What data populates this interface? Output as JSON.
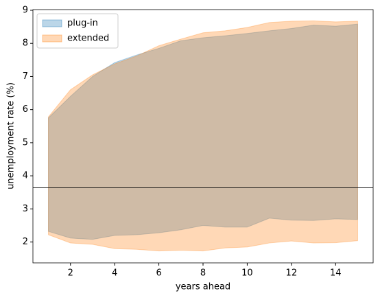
{
  "chart_data": {
    "type": "band",
    "x_label": "years ahead",
    "y_label": "unemployment rate (%)",
    "x": [
      1,
      2,
      3,
      4,
      5,
      6,
      7,
      8,
      9,
      10,
      11,
      12,
      13,
      14,
      15
    ],
    "series": [
      {
        "name": "plug-in",
        "color": "#1f77b4",
        "lower": [
          2.32,
          2.12,
          2.08,
          2.2,
          2.22,
          2.28,
          2.37,
          2.5,
          2.45,
          2.45,
          2.72,
          2.66,
          2.65,
          2.7,
          2.68
        ],
        "values": [
          5.75,
          6.4,
          7.0,
          7.42,
          7.65,
          7.85,
          8.08,
          8.17,
          8.23,
          8.3,
          8.38,
          8.45,
          8.55,
          8.52,
          8.58
        ]
      },
      {
        "name": "extended",
        "color": "#ff7f0e",
        "lower": [
          2.22,
          1.97,
          1.93,
          1.8,
          1.78,
          1.73,
          1.75,
          1.73,
          1.82,
          1.85,
          1.97,
          2.03,
          1.97,
          1.98,
          2.04
        ],
        "values": [
          5.78,
          6.6,
          7.05,
          7.38,
          7.62,
          7.93,
          8.13,
          8.32,
          8.38,
          8.48,
          8.63,
          8.67,
          8.68,
          8.65,
          8.67
        ]
      }
    ],
    "hline": 3.64,
    "xlim": [
      0.3,
      15.7
    ],
    "ylim": [
      1.37,
      9.02
    ],
    "xticks": [
      2,
      4,
      6,
      8,
      10,
      12,
      14
    ],
    "yticks": [
      2,
      3,
      4,
      5,
      6,
      7,
      8,
      9
    ],
    "legend": "upper left"
  }
}
